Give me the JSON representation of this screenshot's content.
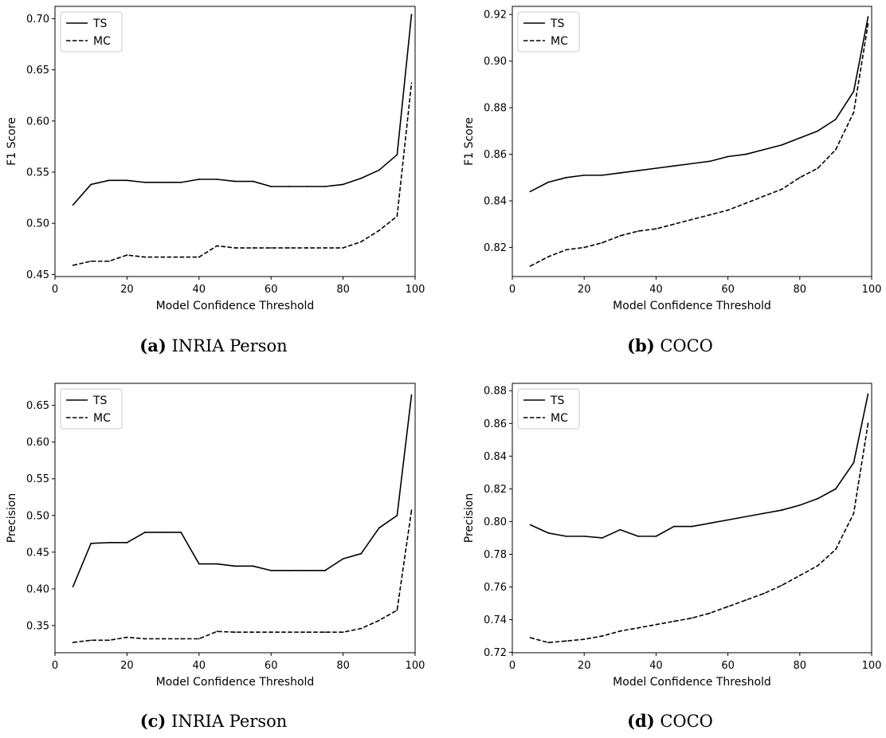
{
  "figure": {
    "panels": [
      {
        "caption_tag": "(a)",
        "caption_text": "INRIA Person",
        "chart_index": 0
      },
      {
        "caption_tag": "(b)",
        "caption_text": "COCO",
        "chart_index": 1
      },
      {
        "caption_tag": "(c)",
        "caption_text": "INRIA Person",
        "chart_index": 2
      },
      {
        "caption_tag": "(d)",
        "caption_text": "COCO",
        "chart_index": 3
      }
    ]
  },
  "chart_data": [
    {
      "type": "line",
      "xlabel": "Model Confidence Threshold",
      "ylabel": "F1 Score",
      "xlim": [
        0,
        100
      ],
      "ylim": [
        0.448,
        0.712
      ],
      "xticks": [
        0,
        20,
        40,
        60,
        80,
        100
      ],
      "yticks": [
        0.45,
        0.5,
        0.55,
        0.6,
        0.65,
        0.7
      ],
      "ytick_labels": [
        "0.45",
        "0.50",
        "0.55",
        "0.60",
        "0.65",
        "0.70"
      ],
      "legend_position": "upper-left",
      "x": [
        5,
        10,
        15,
        20,
        25,
        30,
        35,
        40,
        45,
        50,
        55,
        60,
        65,
        70,
        75,
        80,
        85,
        90,
        95,
        99
      ],
      "series": [
        {
          "name": "TS",
          "style": "solid",
          "values": [
            0.518,
            0.538,
            0.542,
            0.542,
            0.54,
            0.54,
            0.54,
            0.543,
            0.543,
            0.541,
            0.541,
            0.536,
            0.536,
            0.536,
            0.536,
            0.538,
            0.544,
            0.552,
            0.567,
            0.704
          ]
        },
        {
          "name": "MC",
          "style": "dashed",
          "values": [
            0.459,
            0.463,
            0.463,
            0.469,
            0.467,
            0.467,
            0.467,
            0.467,
            0.478,
            0.476,
            0.476,
            0.476,
            0.476,
            0.476,
            0.476,
            0.476,
            0.482,
            0.493,
            0.507,
            0.637
          ]
        }
      ]
    },
    {
      "type": "line",
      "xlabel": "Model Confidence Threshold",
      "ylabel": "F1 Score",
      "xlim": [
        0,
        100
      ],
      "ylim": [
        0.8075,
        0.9235
      ],
      "xticks": [
        0,
        20,
        40,
        60,
        80,
        100
      ],
      "yticks": [
        0.82,
        0.84,
        0.86,
        0.88,
        0.9,
        0.92
      ],
      "ytick_labels": [
        "0.82",
        "0.84",
        "0.86",
        "0.88",
        "0.90",
        "0.92"
      ],
      "legend_position": "upper-left",
      "x": [
        5,
        10,
        15,
        20,
        25,
        30,
        35,
        40,
        45,
        50,
        55,
        60,
        65,
        70,
        75,
        80,
        85,
        90,
        95,
        99
      ],
      "series": [
        {
          "name": "TS",
          "style": "solid",
          "values": [
            0.844,
            0.848,
            0.85,
            0.851,
            0.851,
            0.852,
            0.853,
            0.854,
            0.855,
            0.856,
            0.857,
            0.859,
            0.86,
            0.862,
            0.864,
            0.867,
            0.87,
            0.875,
            0.887,
            0.919
          ]
        },
        {
          "name": "MC",
          "style": "dashed",
          "values": [
            0.812,
            0.816,
            0.819,
            0.82,
            0.822,
            0.825,
            0.827,
            0.828,
            0.83,
            0.832,
            0.834,
            0.836,
            0.839,
            0.842,
            0.845,
            0.85,
            0.854,
            0.862,
            0.878,
            0.916
          ]
        }
      ]
    },
    {
      "type": "line",
      "xlabel": "Model Confidence Threshold",
      "ylabel": "Precision",
      "xlim": [
        0,
        100
      ],
      "ylim": [
        0.313,
        0.68
      ],
      "xticks": [
        0,
        20,
        40,
        60,
        80,
        100
      ],
      "yticks": [
        0.35,
        0.4,
        0.45,
        0.5,
        0.55,
        0.6,
        0.65
      ],
      "ytick_labels": [
        "0.35",
        "0.40",
        "0.45",
        "0.50",
        "0.55",
        "0.60",
        "0.65"
      ],
      "legend_position": "upper-left",
      "x": [
        5,
        10,
        15,
        20,
        25,
        30,
        35,
        40,
        45,
        50,
        55,
        60,
        65,
        70,
        75,
        80,
        85,
        90,
        95,
        99
      ],
      "series": [
        {
          "name": "TS",
          "style": "solid",
          "values": [
            0.403,
            0.462,
            0.463,
            0.463,
            0.477,
            0.477,
            0.477,
            0.434,
            0.434,
            0.431,
            0.431,
            0.425,
            0.425,
            0.425,
            0.425,
            0.441,
            0.448,
            0.483,
            0.5,
            0.664
          ]
        },
        {
          "name": "MC",
          "style": "dashed",
          "values": [
            0.327,
            0.33,
            0.33,
            0.334,
            0.332,
            0.332,
            0.332,
            0.332,
            0.342,
            0.341,
            0.341,
            0.341,
            0.341,
            0.341,
            0.341,
            0.341,
            0.346,
            0.357,
            0.371,
            0.507
          ]
        }
      ]
    },
    {
      "type": "line",
      "xlabel": "Model Confidence Threshold",
      "ylabel": "Precision",
      "xlim": [
        0,
        100
      ],
      "ylim": [
        0.7198,
        0.8845
      ],
      "xticks": [
        0,
        20,
        40,
        60,
        80,
        100
      ],
      "yticks": [
        0.72,
        0.74,
        0.76,
        0.78,
        0.8,
        0.82,
        0.84,
        0.86,
        0.88
      ],
      "ytick_labels": [
        "0.72",
        "0.74",
        "0.76",
        "0.78",
        "0.80",
        "0.82",
        "0.84",
        "0.86",
        "0.88"
      ],
      "legend_position": "upper-left",
      "x": [
        5,
        10,
        15,
        20,
        25,
        30,
        35,
        40,
        45,
        50,
        55,
        60,
        65,
        70,
        75,
        80,
        85,
        90,
        95,
        99
      ],
      "series": [
        {
          "name": "TS",
          "style": "solid",
          "values": [
            0.798,
            0.793,
            0.791,
            0.791,
            0.79,
            0.795,
            0.791,
            0.791,
            0.797,
            0.797,
            0.799,
            0.801,
            0.803,
            0.805,
            0.807,
            0.81,
            0.814,
            0.82,
            0.836,
            0.878
          ]
        },
        {
          "name": "MC",
          "style": "dashed",
          "values": [
            0.729,
            0.726,
            0.727,
            0.728,
            0.73,
            0.733,
            0.735,
            0.737,
            0.739,
            0.741,
            0.744,
            0.748,
            0.752,
            0.756,
            0.761,
            0.767,
            0.773,
            0.783,
            0.805,
            0.86
          ]
        }
      ]
    }
  ]
}
